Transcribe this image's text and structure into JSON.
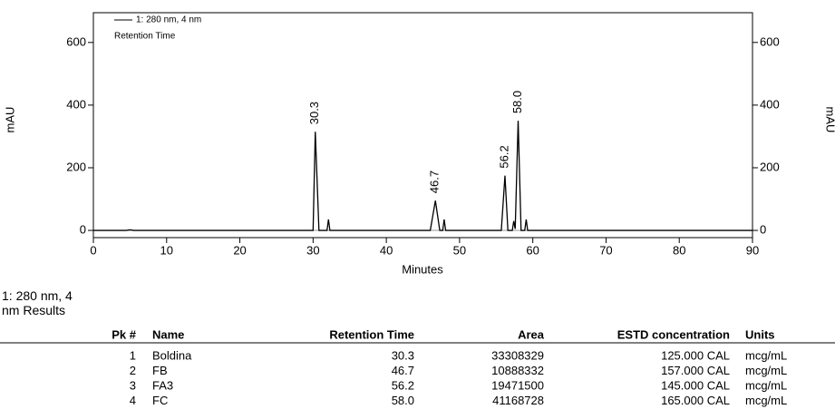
{
  "chart_data": {
    "type": "line",
    "legend": "1: 280 nm, 4 nm",
    "legend_subtitle": "Retention Time",
    "x_label": "Minutes",
    "y_label": "mAU",
    "y2_label": "mAU",
    "color": "#000000",
    "x": [
      0,
      4.5,
      5,
      5.5,
      30,
      30.3,
      30.8,
      31.9,
      32.1,
      32.3,
      46,
      46.7,
      47.3,
      47.7,
      47.9,
      48.1,
      55.7,
      56.2,
      56.6,
      57.2,
      57.4,
      57.6,
      58.0,
      58.4,
      58.9,
      59.1,
      59.3,
      90
    ],
    "values": [
      0,
      0,
      2,
      0,
      0,
      315,
      0,
      0,
      35,
      0,
      0,
      95,
      0,
      0,
      35,
      0,
      0,
      175,
      0,
      0,
      30,
      5,
      350,
      0,
      0,
      35,
      0,
      0
    ],
    "peak_labels": [
      {
        "value": 30.3,
        "label": "30.3"
      },
      {
        "value": 46.7,
        "label": "46.7"
      },
      {
        "value": 56.2,
        "label": "56.2"
      },
      {
        "value": 58.0,
        "label": "58.0"
      }
    ],
    "peak_heights": [
      315,
      95,
      175,
      350
    ],
    "xlim": [
      0,
      90
    ],
    "xticks": [
      0,
      10,
      20,
      30,
      40,
      50,
      60,
      70,
      80,
      90
    ],
    "ylim": [
      -23,
      695
    ],
    "yticks": [
      0,
      200,
      400,
      600
    ],
    "y2lim": [
      -23,
      695
    ],
    "y2ticks": [
      0,
      200,
      400,
      600
    ]
  },
  "table": {
    "title": "1: 280 nm, 4 nm Results",
    "header": [
      "Pk #",
      "Name",
      "Retention Time",
      "Area",
      "ESTD concentration",
      "Units"
    ],
    "rows": [
      [
        "1",
        "Boldina",
        "30.3",
        "33308329",
        "125.000 CAL",
        "mcg/mL"
      ],
      [
        "2",
        "FB",
        "46.7",
        "10888332",
        "157.000 CAL",
        "mcg/mL"
      ],
      [
        "3",
        "FA3",
        "56.2",
        "19471500",
        "145.000 CAL",
        "mcg/mL"
      ],
      [
        "4",
        "FC",
        "58.0",
        "41168728",
        "165.000 CAL",
        "mcg/mL"
      ]
    ]
  }
}
